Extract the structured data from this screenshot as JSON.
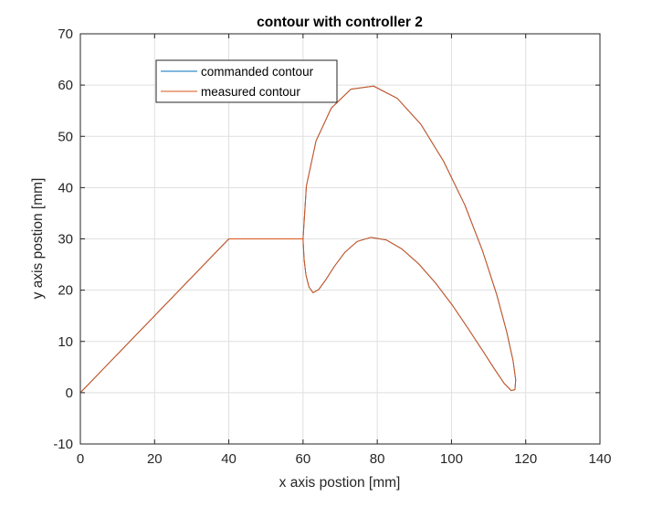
{
  "chart_data": {
    "type": "line",
    "title": "contour with controller 2",
    "xlabel": "x axis postion [mm]",
    "ylabel": "y axis postion [mm]",
    "xlim": [
      0,
      140
    ],
    "ylim": [
      -10,
      70
    ],
    "xticks": [
      0,
      20,
      40,
      60,
      80,
      100,
      120,
      140
    ],
    "yticks": [
      -10,
      0,
      10,
      20,
      30,
      40,
      50,
      60,
      70
    ],
    "xtick_labels": [
      "0",
      "20",
      "40",
      "60",
      "80",
      "100",
      "120",
      "140"
    ],
    "ytick_labels": [
      "-10",
      "0",
      "10",
      "20",
      "30",
      "40",
      "50",
      "60",
      "70"
    ],
    "grid": true,
    "legend_position": "top-left",
    "series": [
      {
        "name": "commanded contour",
        "color": "#0072BD",
        "x": [
          0,
          40,
          60,
          60.9,
          63.5,
          67.6,
          72.9,
          79.0,
          85.4,
          91.8,
          97.9,
          103.6,
          108.4,
          112.2,
          114.9,
          116.6,
          117.3,
          117.1,
          116.1,
          114.2,
          111.6,
          108.3,
          104.4,
          100.2,
          95.7,
          91.2,
          86.7,
          82.4,
          78.3,
          74.6,
          71.3,
          68.5,
          66.1,
          64.2,
          62.7,
          61.6,
          60.8,
          60.3,
          60.1,
          60
        ],
        "y": [
          0,
          30,
          30,
          40.3,
          49.1,
          55.5,
          59.2,
          59.8,
          57.4,
          52.3,
          45.1,
          36.6,
          27.6,
          19.1,
          11.8,
          6.2,
          2.5,
          0.6,
          0.4,
          1.8,
          4.6,
          8.3,
          12.6,
          17.1,
          21.4,
          25.1,
          28.0,
          29.8,
          30.3,
          29.5,
          27.4,
          24.7,
          22.0,
          20.1,
          19.5,
          20.6,
          22.9,
          25.9,
          28.5,
          30
        ]
      },
      {
        "name": "measured contour",
        "color": "#D95319",
        "x": [
          0,
          40,
          60,
          60.9,
          63.5,
          67.6,
          72.9,
          79.0,
          85.4,
          91.8,
          97.9,
          103.6,
          108.4,
          112.2,
          114.9,
          116.6,
          117.3,
          117.1,
          116.1,
          114.2,
          111.6,
          108.3,
          104.4,
          100.2,
          95.7,
          91.2,
          86.7,
          82.4,
          78.3,
          74.6,
          71.3,
          68.5,
          66.1,
          64.2,
          62.7,
          61.6,
          60.8,
          60.3,
          60.1,
          60
        ],
        "y": [
          0,
          30,
          30,
          40.3,
          49.1,
          55.5,
          59.2,
          59.8,
          57.4,
          52.3,
          45.1,
          36.6,
          27.6,
          19.1,
          11.8,
          6.2,
          2.5,
          0.6,
          0.4,
          1.8,
          4.6,
          8.3,
          12.6,
          17.1,
          21.4,
          25.1,
          28.0,
          29.8,
          30.3,
          29.5,
          27.4,
          24.7,
          22.0,
          20.1,
          19.5,
          20.6,
          22.9,
          25.9,
          28.5,
          30
        ]
      }
    ]
  }
}
